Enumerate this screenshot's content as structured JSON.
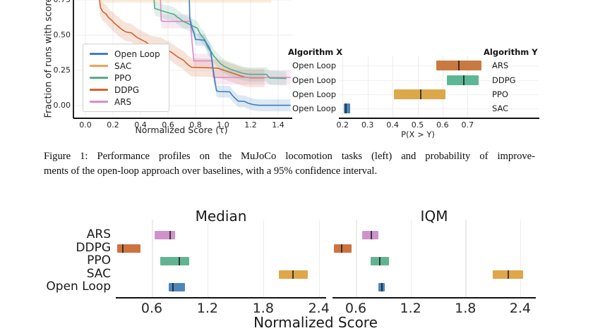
{
  "caption": {
    "line1": "Figure 1: Performance profiles on the MuJoCo locomotion tasks (left) and probability of improve-",
    "line2": "ments of the open-loop approach over baselines, with a 95% confidence interval."
  },
  "chart_data": [
    {
      "id": "performance_profiles",
      "type": "line",
      "xlabel": "Normalized Score (τ)",
      "ylabel": "Fraction of runs with score > τ",
      "xticks": [
        "0.0",
        "0.2",
        "0.4",
        "0.6",
        "0.8",
        "1.0",
        "1.2",
        "1.4"
      ],
      "xtick_values": [
        0.0,
        0.2,
        0.4,
        0.6,
        0.8,
        1.0,
        1.2,
        1.4
      ],
      "yticks": [
        "0.00",
        "0.25",
        "0.50",
        "0.75"
      ],
      "ytick_values": [
        0.0,
        0.25,
        0.5,
        0.75
      ],
      "xlim": [
        -0.09,
        1.49
      ],
      "ylim_visible": [
        -0.09,
        0.75
      ],
      "grid": true,
      "legend_position": "lower-left",
      "band_note": "95% confidence bands, translucent",
      "series": [
        {
          "name": "Open Loop",
          "color": "#3e7dbf",
          "band": 0.042,
          "points": [
            [
              0.755,
              0.76
            ],
            [
              0.758,
              0.62
            ],
            [
              0.775,
              0.55
            ],
            [
              0.79,
              0.51
            ],
            [
              0.8,
              0.47
            ],
            [
              0.862,
              0.465
            ],
            [
              0.875,
              0.45
            ],
            [
              0.888,
              0.43
            ],
            [
              0.9,
              0.41
            ],
            [
              0.91,
              0.385
            ],
            [
              0.916,
              0.345
            ],
            [
              0.925,
              0.27
            ],
            [
              0.935,
              0.21
            ],
            [
              0.944,
              0.15
            ],
            [
              0.953,
              0.105
            ],
            [
              0.97,
              0.1
            ],
            [
              1.048,
              0.098
            ],
            [
              1.065,
              0.075
            ],
            [
              1.09,
              0.05
            ],
            [
              1.11,
              0.032
            ],
            [
              1.155,
              0.03
            ],
            [
              1.18,
              0.018
            ],
            [
              1.215,
              0.008
            ],
            [
              1.26,
              0.002
            ],
            [
              1.49,
              0.002
            ]
          ]
        },
        {
          "name": "SAC",
          "color": "#eea255",
          "band": 0.06,
          "points": [
            [
              0.12,
              0.79
            ],
            [
              1.35,
              0.79
            ]
          ]
        },
        {
          "name": "PPO",
          "color": "#55ab88",
          "band": 0.05,
          "points": [
            [
              0.498,
              0.76
            ],
            [
              0.503,
              0.69
            ],
            [
              0.53,
              0.682
            ],
            [
              0.56,
              0.672
            ],
            [
              0.6,
              0.66
            ],
            [
              0.645,
              0.648
            ],
            [
              0.665,
              0.63
            ],
            [
              0.69,
              0.615
            ],
            [
              0.705,
              0.6
            ],
            [
              0.73,
              0.59
            ],
            [
              0.755,
              0.578
            ],
            [
              0.78,
              0.565
            ],
            [
              0.813,
              0.55
            ],
            [
              0.828,
              0.52
            ],
            [
              0.84,
              0.5
            ],
            [
              0.868,
              0.468
            ],
            [
              0.878,
              0.44
            ],
            [
              0.888,
              0.415
            ],
            [
              0.905,
              0.39
            ],
            [
              0.918,
              0.378
            ],
            [
              0.932,
              0.352
            ],
            [
              0.945,
              0.34
            ],
            [
              0.962,
              0.318
            ],
            [
              0.985,
              0.295
            ],
            [
              1.01,
              0.278
            ],
            [
              1.05,
              0.26
            ],
            [
              1.09,
              0.246
            ],
            [
              1.14,
              0.23
            ],
            [
              1.19,
              0.222
            ],
            [
              1.315,
              0.222
            ],
            [
              1.34,
              0.196
            ],
            [
              1.46,
              0.193
            ]
          ]
        },
        {
          "name": "DDPG",
          "color": "#d2642d",
          "band": 0.065,
          "points": [
            [
              0.102,
              0.76
            ],
            [
              0.108,
              0.7
            ],
            [
              0.125,
              0.668
            ],
            [
              0.15,
              0.65
            ],
            [
              0.168,
              0.625
            ],
            [
              0.19,
              0.607
            ],
            [
              0.21,
              0.586
            ],
            [
              0.232,
              0.568
            ],
            [
              0.255,
              0.548
            ],
            [
              0.275,
              0.534
            ],
            [
              0.295,
              0.523
            ],
            [
              0.335,
              0.516
            ],
            [
              0.355,
              0.5
            ],
            [
              0.375,
              0.484
            ],
            [
              0.398,
              0.472
            ],
            [
              0.418,
              0.462
            ],
            [
              0.438,
              0.452
            ],
            [
              0.458,
              0.437
            ],
            [
              0.49,
              0.428
            ],
            [
              0.55,
              0.418
            ],
            [
              0.575,
              0.403
            ],
            [
              0.61,
              0.388
            ],
            [
              0.635,
              0.372
            ],
            [
              0.655,
              0.357
            ],
            [
              0.675,
              0.343
            ],
            [
              0.695,
              0.333
            ],
            [
              0.715,
              0.32
            ],
            [
              0.735,
              0.3
            ],
            [
              0.75,
              0.287
            ],
            [
              0.77,
              0.272
            ],
            [
              0.96,
              0.266
            ],
            [
              1.0,
              0.254
            ],
            [
              1.04,
              0.24
            ],
            [
              1.08,
              0.227
            ],
            [
              1.12,
              0.213
            ],
            [
              1.16,
              0.202
            ],
            [
              1.2,
              0.197
            ],
            [
              1.3,
              0.197
            ]
          ]
        },
        {
          "name": "ARS",
          "color": "#d98cc8",
          "band": 0.05,
          "points": [
            [
              0.545,
              0.76
            ],
            [
              0.55,
              0.605
            ],
            [
              0.565,
              0.598
            ],
            [
              0.762,
              0.598
            ],
            [
              0.775,
              0.45
            ],
            [
              0.787,
              0.318
            ],
            [
              0.922,
              0.318
            ],
            [
              0.93,
              0.2
            ],
            [
              1.49,
              0.2
            ]
          ]
        }
      ]
    },
    {
      "id": "probability_of_improvement",
      "type": "bar",
      "header_left": "Algorithm X",
      "header_right": "Algorithm Y",
      "xlabel": "P(X > Y)",
      "xticks": [
        "0.2",
        "0.3",
        "0.4",
        "0.5",
        "0.6",
        "0.7"
      ],
      "xtick_values": [
        0.2,
        0.3,
        0.4,
        0.5,
        0.6,
        0.7
      ],
      "grid": true,
      "rows": [
        {
          "x": "Open Loop",
          "y": "ARS",
          "lo": 0.576,
          "hi": 0.755,
          "mid": 0.665,
          "color": "#c97a42"
        },
        {
          "x": "Open Loop",
          "y": "DDPG",
          "lo": 0.618,
          "hi": 0.744,
          "mid": 0.684,
          "color": "#5cb894"
        },
        {
          "x": "Open Loop",
          "y": "PPO",
          "lo": 0.406,
          "hi": 0.611,
          "mid": 0.513,
          "color": "#dca84c"
        },
        {
          "x": "Open Loop",
          "y": "SAC",
          "lo": 0.206,
          "hi": 0.23,
          "mid": 0.213,
          "color": "#4a84b6"
        }
      ]
    },
    {
      "id": "median",
      "type": "bar",
      "title": "Median",
      "xlabel": "Normalized Score",
      "xticks": [
        "0.6",
        "1.2",
        "1.8",
        "2.4"
      ],
      "xtick_values": [
        0.6,
        1.2,
        1.8,
        2.4
      ],
      "grid": true,
      "algorithms": [
        "ARS",
        "DDPG",
        "PPO",
        "SAC",
        "Open Loop"
      ],
      "intervals": [
        {
          "alg": "ARS",
          "lo": 0.63,
          "hi": 0.85,
          "mid": 0.8,
          "color": "#cf93ca"
        },
        {
          "alg": "DDPG",
          "lo": 0.228,
          "hi": 0.478,
          "mid": 0.285,
          "color": "#cd7340"
        },
        {
          "alg": "PPO",
          "lo": 0.69,
          "hi": 1.0,
          "mid": 0.9,
          "color": "#62b491"
        },
        {
          "alg": "SAC",
          "lo": 1.97,
          "hi": 2.28,
          "mid": 2.12,
          "color": "#dfa64a"
        },
        {
          "alg": "Open Loop",
          "lo": 0.785,
          "hi": 0.96,
          "mid": 0.825,
          "color": "#4e86ba"
        }
      ]
    },
    {
      "id": "iqm",
      "type": "bar",
      "title": "IQM",
      "xlabel": "Normalized Score",
      "xticks": [
        "0.6",
        "1.2",
        "1.8",
        "2.4"
      ],
      "xtick_values": [
        0.6,
        1.2,
        1.8,
        2.4
      ],
      "grid": true,
      "algorithms": [
        "ARS",
        "DDPG",
        "PPO",
        "SAC",
        "Open Loop"
      ],
      "intervals": [
        {
          "alg": "ARS",
          "lo": 0.67,
          "hi": 0.85,
          "mid": 0.77,
          "color": "#cf93ca"
        },
        {
          "alg": "DDPG",
          "lo": 0.36,
          "hi": 0.55,
          "mid": 0.445,
          "color": "#cd7340"
        },
        {
          "alg": "PPO",
          "lo": 0.76,
          "hi": 0.96,
          "mid": 0.865,
          "color": "#62b491"
        },
        {
          "alg": "SAC",
          "lo": 2.1,
          "hi": 2.43,
          "mid": 2.27,
          "color": "#dfa64a"
        },
        {
          "alg": "Open Loop",
          "lo": 0.845,
          "hi": 0.92,
          "mid": 0.885,
          "color": "#4e86ba"
        }
      ]
    }
  ]
}
